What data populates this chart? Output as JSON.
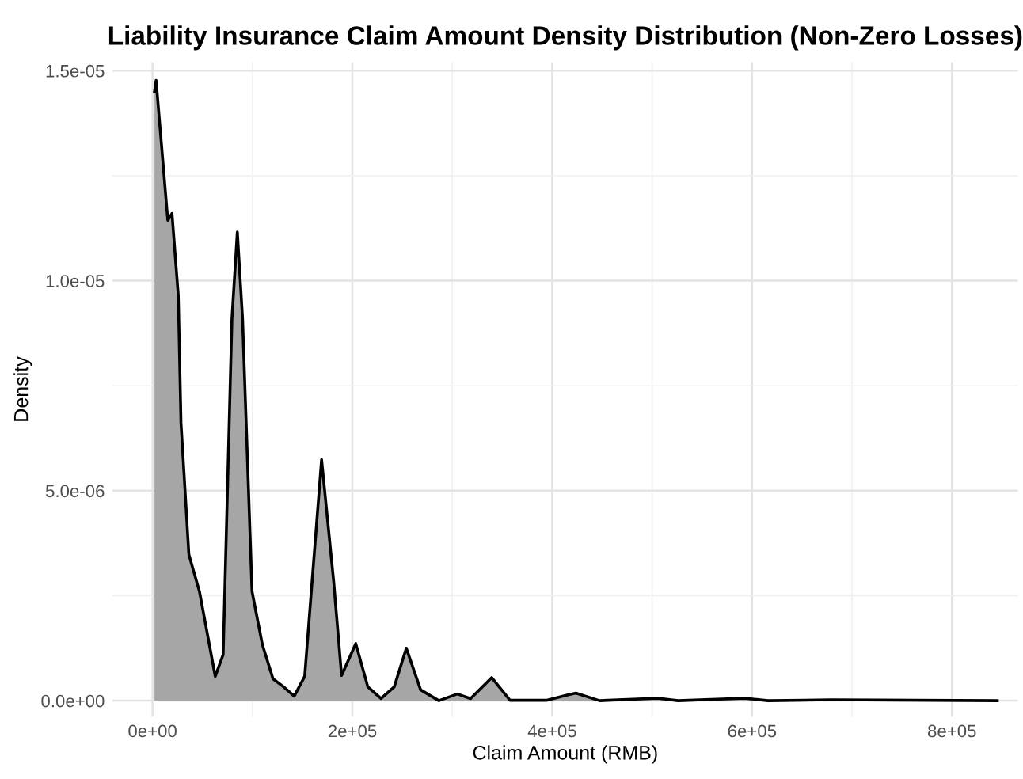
{
  "chart_data": {
    "type": "area",
    "title": "Liability Insurance Claim Amount Density Distribution (Non-Zero Losses)",
    "xlabel": "Claim Amount (RMB)",
    "ylabel": "Density",
    "series": [
      {
        "color": "#a6a6a6",
        "x": [
          2000,
          3600,
          15300,
          19500,
          25800,
          28500,
          36400,
          47000,
          62800,
          70700,
          79500,
          84900,
          90100,
          99600,
          110000,
          120600,
          131200,
          141800,
          152300,
          169200,
          181300,
          189200,
          203400,
          215500,
          228700,
          241900,
          254000,
          268300,
          286600,
          305100,
          318300,
          339400,
          357800,
          394800,
          415800,
          423700,
          447400,
          505500,
          526000,
          592400,
          616100,
          679400,
          845400
        ],
        "values": [
          1.45e-05,
          1.477e-05,
          1.144e-05,
          1.16e-05,
          9.65e-06,
          6.62e-06,
          3.48e-06,
          2.6e-06,
          5.8e-07,
          1.1e-06,
          9.1e-06,
          1.116e-05,
          9.1e-06,
          2.6e-06,
          1.33e-06,
          5.2e-07,
          3.3e-07,
          1.1e-07,
          5.8e-07,
          5.74e-06,
          2.84e-06,
          6e-07,
          1.36e-06,
          3.3e-07,
          5e-08,
          3.3e-07,
          1.25e-06,
          2.6e-07,
          0,
          1.6e-07,
          5e-08,
          5.5e-07,
          1e-08,
          1e-08,
          1.4e-07,
          1.8e-07,
          0,
          6e-08,
          0,
          6e-08,
          0,
          2e-08,
          0
        ]
      }
    ],
    "xlim": [
      -40000,
      866000
    ],
    "ylim": [
      -3.8e-07,
      1.52e-05
    ],
    "xticks": [
      {
        "value": 0,
        "label": "0e+00"
      },
      {
        "value": 100000,
        "label": null
      },
      {
        "value": 200000,
        "label": "2e+05"
      },
      {
        "value": 300000,
        "label": null
      },
      {
        "value": 400000,
        "label": "4e+05"
      },
      {
        "value": 500000,
        "label": null
      },
      {
        "value": 600000,
        "label": "6e+05"
      },
      {
        "value": 700000,
        "label": null
      },
      {
        "value": 800000,
        "label": "8e+05"
      }
    ],
    "yticks": [
      {
        "value": 0,
        "label": "0.0e+00"
      },
      {
        "value": 2.5e-06,
        "label": null
      },
      {
        "value": 5e-06,
        "label": "5.0e-06"
      },
      {
        "value": 7.5e-06,
        "label": null
      },
      {
        "value": 1e-05,
        "label": "1.0e-05"
      },
      {
        "value": 1.25e-05,
        "label": null
      },
      {
        "value": 1.5e-05,
        "label": "1.5e-05"
      }
    ],
    "grid": true,
    "line_style": "solid"
  }
}
